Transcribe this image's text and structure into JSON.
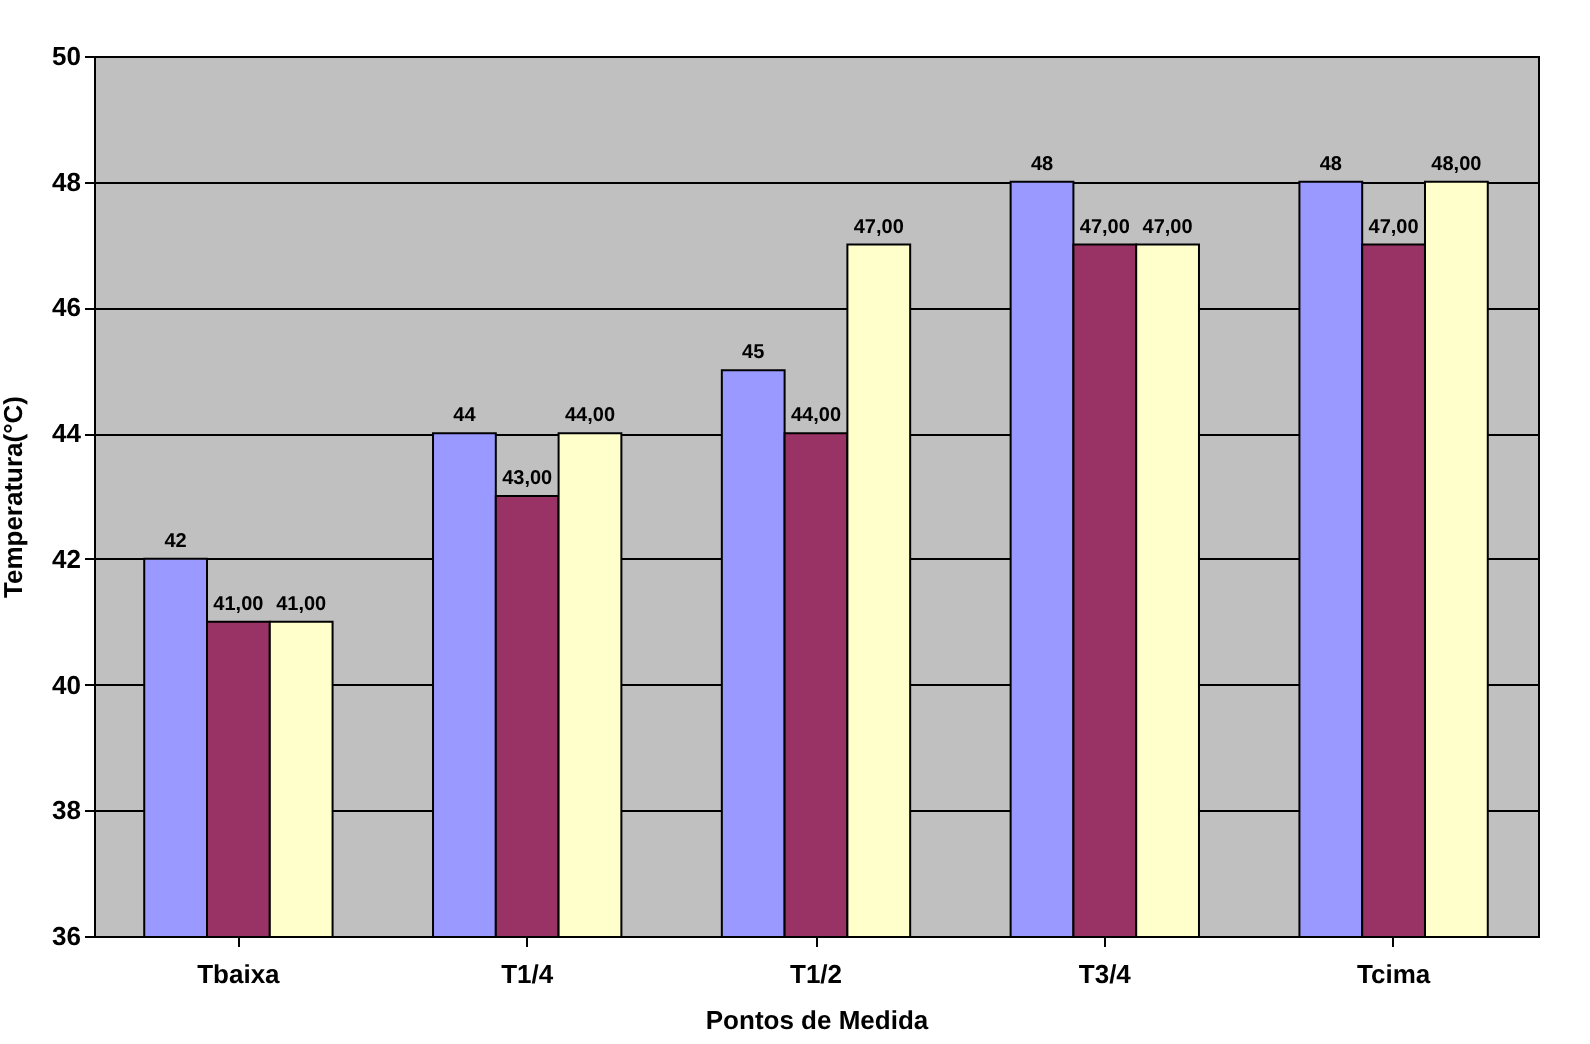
{
  "chart_data": {
    "type": "bar",
    "xlabel": "Pontos de Medida",
    "ylabel": "Temperatura(°C)",
    "categories": [
      "Tbaixa",
      "T1/4",
      "T1/2",
      "T3/4",
      "Tcima"
    ],
    "series": [
      {
        "color": "#9999ff",
        "values": [
          42,
          44,
          45,
          48,
          48
        ],
        "value_labels": [
          "42",
          "44",
          "45",
          "48",
          "48"
        ]
      },
      {
        "color": "#993366",
        "values": [
          41,
          43,
          44,
          47,
          47
        ],
        "value_labels": [
          "41,00",
          "43,00",
          "44,00",
          "47,00",
          "47,00"
        ]
      },
      {
        "color": "#ffffcc",
        "values": [
          41,
          44,
          47,
          47,
          48
        ],
        "value_labels": [
          "41,00",
          "44,00",
          "47,00",
          "47,00",
          "48,00"
        ]
      }
    ],
    "ylim": [
      36,
      50
    ],
    "yticks": [
      36,
      38,
      40,
      42,
      44,
      46,
      48,
      50
    ],
    "grid": "y",
    "legend": false
  }
}
